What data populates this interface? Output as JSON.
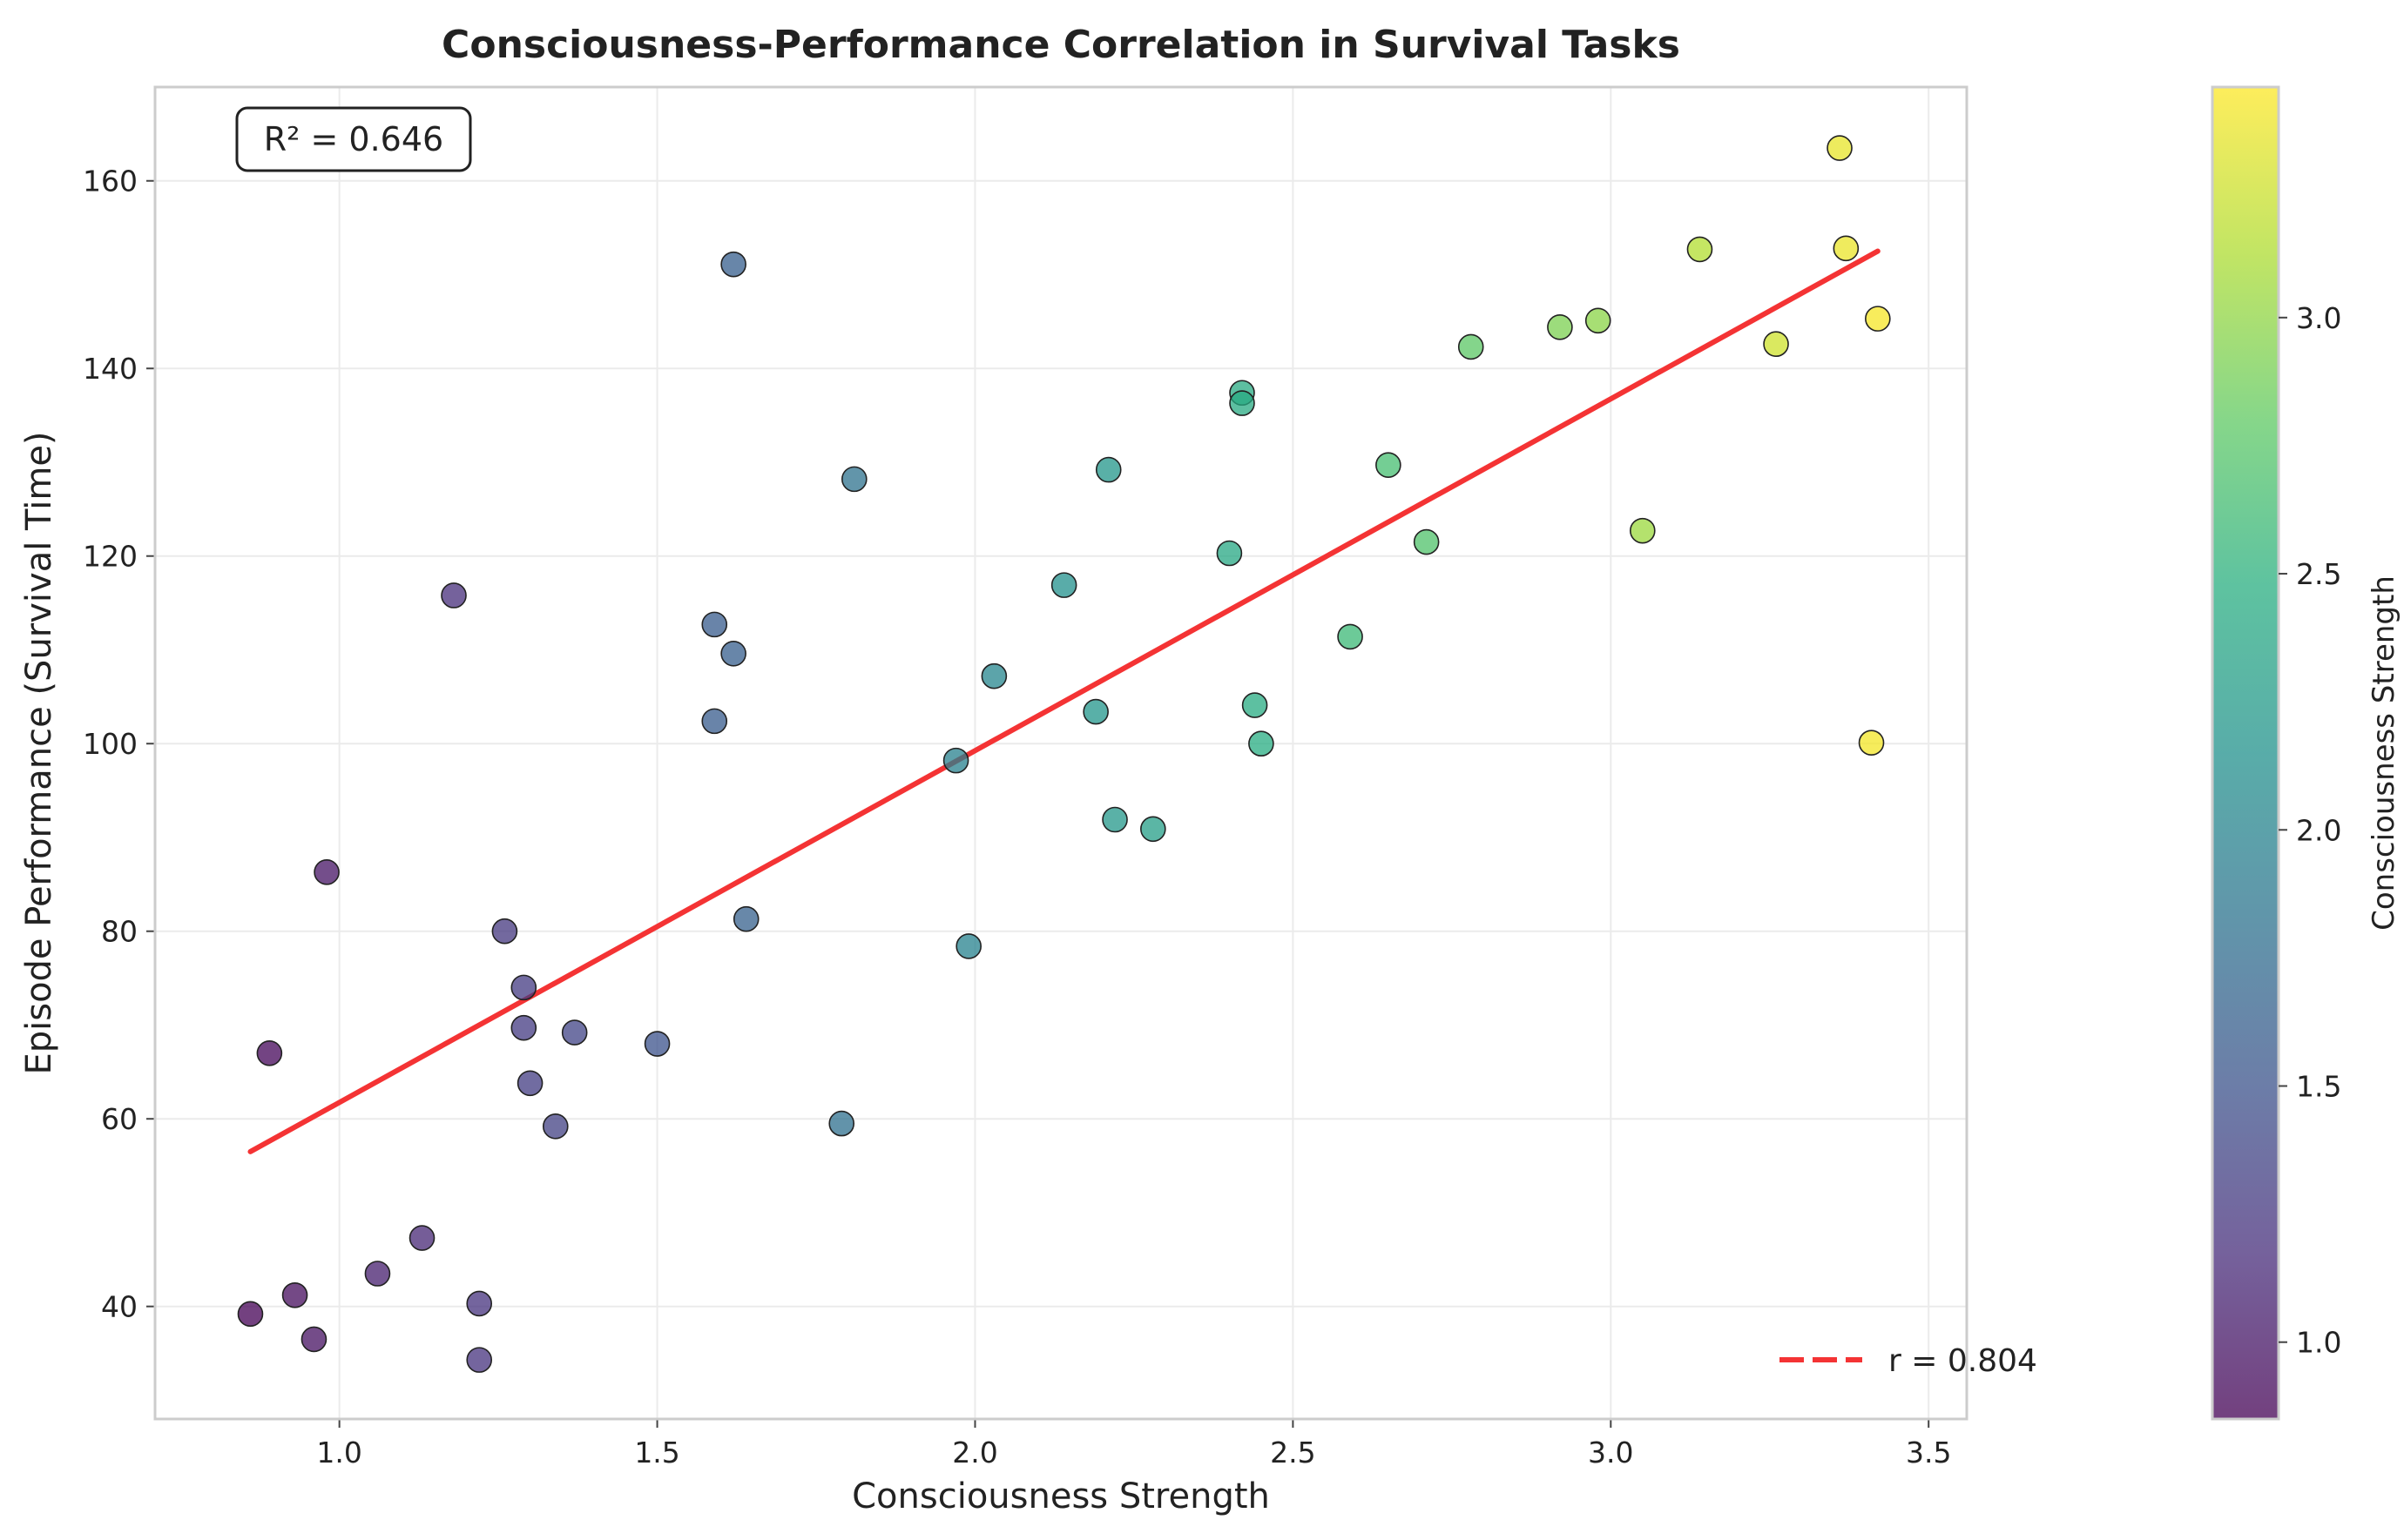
{
  "chart_data": {
    "type": "scatter",
    "title": "Consciousness-Performance Correlation in Survival Tasks",
    "xlabel": "Consciousness Strength",
    "ylabel": "Episode Performance (Survival Time)",
    "xlim": [
      0.71,
      3.56
    ],
    "ylim": [
      28,
      170
    ],
    "x_ticks": [
      "1.0",
      "1.5",
      "2.0",
      "2.5",
      "3.0",
      "3.5"
    ],
    "y_ticks": [
      "40",
      "60",
      "80",
      "100",
      "120",
      "140",
      "160"
    ],
    "grid": true,
    "annotation": "R² = 0.646",
    "legend": {
      "placement": "bottom-right",
      "label": "r = 0.804"
    },
    "trend_line": {
      "x": [
        0.86,
        3.42
      ],
      "y": [
        56.5,
        152.5
      ],
      "color": "#f43334"
    },
    "colorbar": {
      "label": "Consciousness Strength",
      "range": [
        0.85,
        3.45
      ],
      "ticks": [
        "1.0",
        "1.5",
        "2.0",
        "2.5",
        "3.0"
      ],
      "colormap": "viridis"
    },
    "points": [
      {
        "x": 0.86,
        "y": 39.2
      },
      {
        "x": 0.89,
        "y": 67.0
      },
      {
        "x": 0.93,
        "y": 41.2
      },
      {
        "x": 0.96,
        "y": 36.5
      },
      {
        "x": 0.98,
        "y": 86.3
      },
      {
        "x": 1.06,
        "y": 43.5
      },
      {
        "x": 1.13,
        "y": 47.3
      },
      {
        "x": 1.18,
        "y": 115.8
      },
      {
        "x": 1.22,
        "y": 40.3
      },
      {
        "x": 1.22,
        "y": 34.3
      },
      {
        "x": 1.26,
        "y": 80.0
      },
      {
        "x": 1.29,
        "y": 74.0
      },
      {
        "x": 1.29,
        "y": 69.7
      },
      {
        "x": 1.3,
        "y": 63.8
      },
      {
        "x": 1.34,
        "y": 59.2
      },
      {
        "x": 1.37,
        "y": 69.2
      },
      {
        "x": 1.5,
        "y": 68.0
      },
      {
        "x": 1.59,
        "y": 112.7
      },
      {
        "x": 1.59,
        "y": 102.4
      },
      {
        "x": 1.62,
        "y": 109.6
      },
      {
        "x": 1.62,
        "y": 151.1
      },
      {
        "x": 1.64,
        "y": 81.3
      },
      {
        "x": 1.79,
        "y": 59.5
      },
      {
        "x": 1.81,
        "y": 128.2
      },
      {
        "x": 1.97,
        "y": 98.2
      },
      {
        "x": 1.99,
        "y": 78.4
      },
      {
        "x": 2.03,
        "y": 107.2
      },
      {
        "x": 2.14,
        "y": 116.9
      },
      {
        "x": 2.19,
        "y": 103.4
      },
      {
        "x": 2.21,
        "y": 129.2
      },
      {
        "x": 2.22,
        "y": 91.9
      },
      {
        "x": 2.28,
        "y": 90.9
      },
      {
        "x": 2.4,
        "y": 120.3
      },
      {
        "x": 2.42,
        "y": 137.4
      },
      {
        "x": 2.42,
        "y": 136.3
      },
      {
        "x": 2.44,
        "y": 104.1
      },
      {
        "x": 2.45,
        "y": 100.0
      },
      {
        "x": 2.59,
        "y": 111.4
      },
      {
        "x": 2.65,
        "y": 129.7
      },
      {
        "x": 2.71,
        "y": 121.5
      },
      {
        "x": 2.78,
        "y": 142.3
      },
      {
        "x": 2.92,
        "y": 144.4
      },
      {
        "x": 2.98,
        "y": 145.1
      },
      {
        "x": 3.05,
        "y": 122.7
      },
      {
        "x": 3.14,
        "y": 152.7
      },
      {
        "x": 3.26,
        "y": 142.6
      },
      {
        "x": 3.36,
        "y": 163.5
      },
      {
        "x": 3.37,
        "y": 152.8
      },
      {
        "x": 3.41,
        "y": 100.1
      },
      {
        "x": 3.42,
        "y": 145.3
      }
    ]
  }
}
